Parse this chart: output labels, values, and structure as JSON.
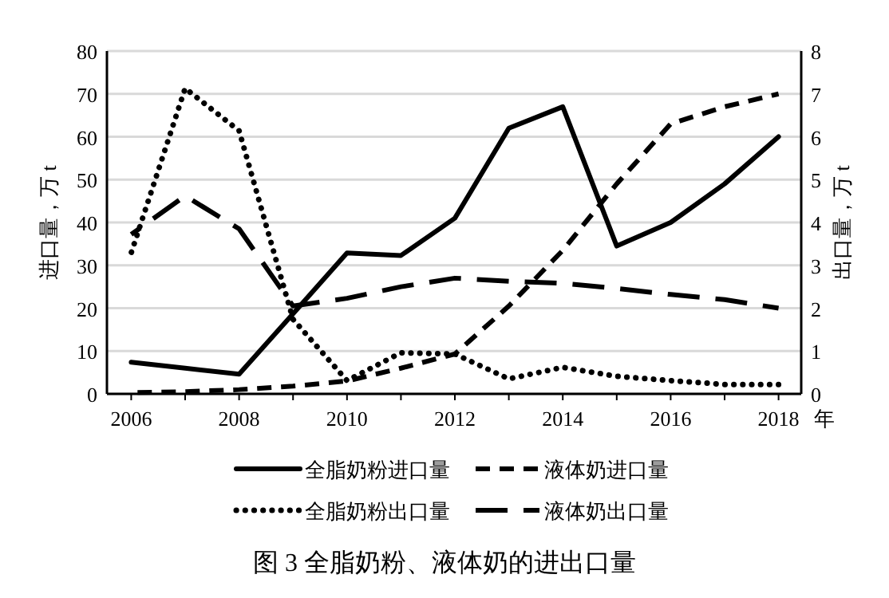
{
  "chart_data": {
    "type": "line",
    "x": [
      2006,
      2007,
      2008,
      2009,
      2010,
      2011,
      2012,
      2013,
      2014,
      2015,
      2016,
      2017,
      2018
    ],
    "xlim": [
      2005.55,
      2018.42
    ],
    "xticks": [
      {
        "value": 2006,
        "label": "2006"
      },
      {
        "value": 2007,
        "label": null
      },
      {
        "value": 2008,
        "label": "2008"
      },
      {
        "value": 2009,
        "label": null
      },
      {
        "value": 2010,
        "label": "2010"
      },
      {
        "value": 2011,
        "label": null
      },
      {
        "value": 2012,
        "label": "2012"
      },
      {
        "value": 2013,
        "label": null
      },
      {
        "value": 2014,
        "label": "2014"
      },
      {
        "value": 2015,
        "label": null
      },
      {
        "value": 2016,
        "label": "2016"
      },
      {
        "value": 2017,
        "label": null
      },
      {
        "value": 2018,
        "label": "2018"
      }
    ],
    "xlabel": "年",
    "ylabel": "进口量，万 t",
    "y2label": "出口量，万 t",
    "ylim": [
      0,
      80
    ],
    "yticks": [
      0,
      10,
      20,
      30,
      40,
      50,
      60,
      70,
      80
    ],
    "y2lim": [
      0,
      8
    ],
    "y2ticks": [
      0,
      1,
      2,
      3,
      4,
      5,
      6,
      7,
      8
    ],
    "grid": "y",
    "legend": "bottom",
    "marker": "none",
    "series": [
      {
        "name": "全脂奶粉进口量",
        "color": "#000000",
        "line_style": "solid",
        "values": [
          7.4,
          6,
          4.6,
          18.7,
          32.9,
          32.3,
          41,
          62,
          67,
          34.5,
          40,
          49,
          60
        ]
      },
      {
        "name": "液体奶进口量",
        "color": "#000000",
        "line_style": "dashed",
        "values": [
          0.3,
          0.5,
          1,
          1.8,
          3,
          6,
          9.3,
          20.5,
          33.5,
          49,
          63,
          67,
          70
        ]
      },
      {
        "name": "全脂奶粉出口量",
        "color": "#000000",
        "line_style": "dotted",
        "axis": "y2",
        "values": [
          3.29,
          7.13,
          6.14,
          1.74,
          0.31,
          0.96,
          0.93,
          0.35,
          0.62,
          0.41,
          0.31,
          0.22,
          0.22
        ]
      },
      {
        "name": "液体奶出口量",
        "color": "#000000",
        "line_style": "dashed",
        "axis": "y2",
        "values": [
          3.72,
          4.62,
          3.85,
          2.05,
          2.23,
          2.5,
          2.7,
          2.63,
          2.58,
          2.46,
          2.32,
          2.2,
          2.0
        ]
      }
    ],
    "annotations": [
      "图 3  全脂奶粉、液体奶的进出口量"
    ]
  }
}
